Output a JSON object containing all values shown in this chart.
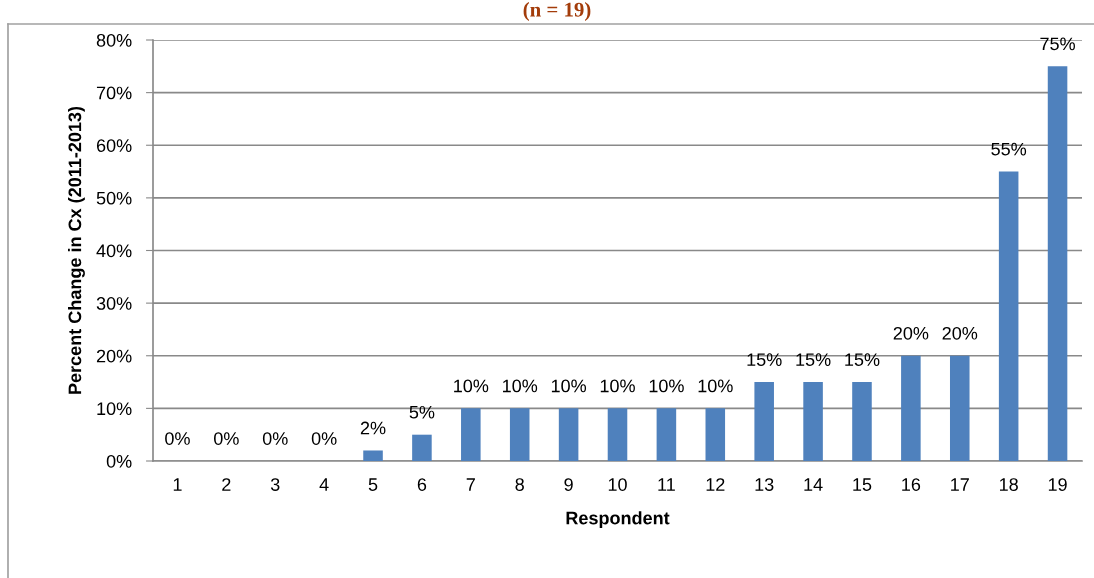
{
  "chart_data": {
    "type": "bar",
    "title": "(n = 19)",
    "xlabel": "Respondent",
    "ylabel": "Percent Change in Cx (2011-2013)",
    "categories": [
      "1",
      "2",
      "3",
      "4",
      "5",
      "6",
      "7",
      "8",
      "9",
      "10",
      "11",
      "12",
      "13",
      "14",
      "15",
      "16",
      "17",
      "18",
      "19"
    ],
    "values": [
      0,
      0,
      0,
      0,
      2,
      5,
      10,
      10,
      10,
      10,
      10,
      10,
      15,
      15,
      15,
      20,
      20,
      55,
      75
    ],
    "value_labels": [
      "0%",
      "0%",
      "0%",
      "0%",
      "2%",
      "5%",
      "10%",
      "10%",
      "10%",
      "10%",
      "10%",
      "10%",
      "15%",
      "15%",
      "15%",
      "20%",
      "20%",
      "55%",
      "75%"
    ],
    "color": "#4f81bd",
    "ylim": [
      0,
      80
    ],
    "yticks": [
      {
        "value": 0,
        "label": "0%"
      },
      {
        "value": 10,
        "label": "10%"
      },
      {
        "value": 20,
        "label": "20%"
      },
      {
        "value": 30,
        "label": "30%"
      },
      {
        "value": 40,
        "label": "40%"
      },
      {
        "value": 50,
        "label": "50%"
      },
      {
        "value": 60,
        "label": "60%"
      },
      {
        "value": 70,
        "label": "70%"
      },
      {
        "value": 80,
        "label": "80%"
      }
    ],
    "grid": "y",
    "legend": false
  }
}
